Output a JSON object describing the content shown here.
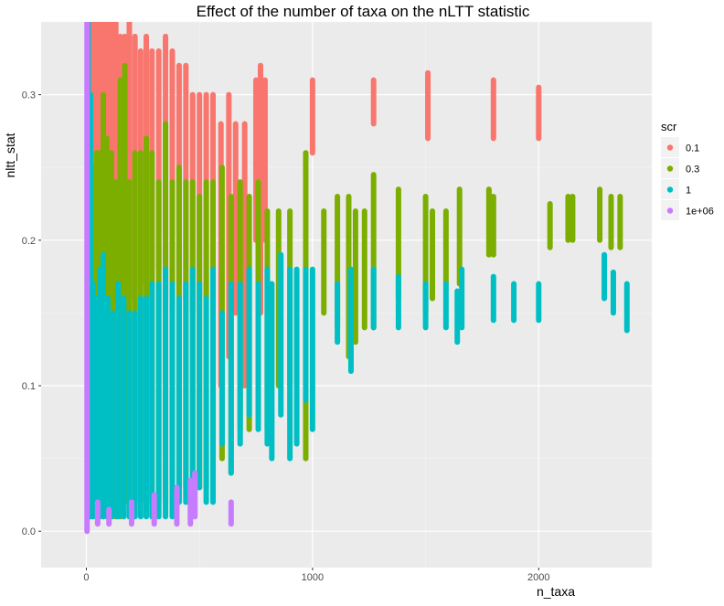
{
  "chart_data": {
    "type": "scatter",
    "title": "Effect of the number of taxa on the nLTT statistic",
    "xlabel": "n_taxa",
    "ylabel": "nltt_stat",
    "xlim": [
      -200,
      2500
    ],
    "ylim": [
      -0.025,
      0.35
    ],
    "x_ticks": [
      0,
      1000,
      2000
    ],
    "x_tick_labels": [
      "0",
      "1000",
      "2000"
    ],
    "y_ticks": [
      0.0,
      0.1,
      0.2,
      0.3
    ],
    "y_tick_labels": [
      "0.0",
      "0.1",
      "0.2",
      "0.3"
    ],
    "grid": true,
    "legend": {
      "title": "scr",
      "position": "right"
    },
    "series": [
      {
        "name": "0.1",
        "color": "#F8766D",
        "ranges": [
          {
            "x": 5,
            "ymin": 0.02,
            "ymax": 0.35
          },
          {
            "x": 12,
            "ymin": 0.03,
            "ymax": 0.35
          },
          {
            "x": 22,
            "ymin": 0.03,
            "ymax": 0.35
          },
          {
            "x": 35,
            "ymin": 0.05,
            "ymax": 0.35
          },
          {
            "x": 50,
            "ymin": 0.06,
            "ymax": 0.35
          },
          {
            "x": 65,
            "ymin": 0.08,
            "ymax": 0.35
          },
          {
            "x": 80,
            "ymin": 0.1,
            "ymax": 0.35
          },
          {
            "x": 95,
            "ymin": 0.12,
            "ymax": 0.35
          },
          {
            "x": 110,
            "ymin": 0.13,
            "ymax": 0.35
          },
          {
            "x": 130,
            "ymin": 0.14,
            "ymax": 0.35
          },
          {
            "x": 150,
            "ymin": 0.15,
            "ymax": 0.34
          },
          {
            "x": 170,
            "ymin": 0.16,
            "ymax": 0.34
          },
          {
            "x": 190,
            "ymin": 0.17,
            "ymax": 0.35
          },
          {
            "x": 215,
            "ymin": 0.16,
            "ymax": 0.34
          },
          {
            "x": 240,
            "ymin": 0.17,
            "ymax": 0.33
          },
          {
            "x": 265,
            "ymin": 0.17,
            "ymax": 0.34
          },
          {
            "x": 290,
            "ymin": 0.17,
            "ymax": 0.33
          },
          {
            "x": 320,
            "ymin": 0.18,
            "ymax": 0.33
          },
          {
            "x": 350,
            "ymin": 0.16,
            "ymax": 0.34
          },
          {
            "x": 380,
            "ymin": 0.17,
            "ymax": 0.33
          },
          {
            "x": 410,
            "ymin": 0.17,
            "ymax": 0.32
          },
          {
            "x": 440,
            "ymin": 0.16,
            "ymax": 0.32
          },
          {
            "x": 470,
            "ymin": 0.15,
            "ymax": 0.3
          },
          {
            "x": 500,
            "ymin": 0.16,
            "ymax": 0.3
          },
          {
            "x": 530,
            "ymin": 0.16,
            "ymax": 0.3
          },
          {
            "x": 560,
            "ymin": 0.1,
            "ymax": 0.3
          },
          {
            "x": 595,
            "ymin": 0.1,
            "ymax": 0.28
          },
          {
            "x": 630,
            "ymin": 0.12,
            "ymax": 0.3
          },
          {
            "x": 660,
            "ymin": 0.15,
            "ymax": 0.28
          },
          {
            "x": 700,
            "ymin": 0.1,
            "ymax": 0.28
          },
          {
            "x": 750,
            "ymin": 0.2,
            "ymax": 0.31
          },
          {
            "x": 770,
            "ymin": 0.15,
            "ymax": 0.32
          },
          {
            "x": 790,
            "ymin": 0.2,
            "ymax": 0.31
          },
          {
            "x": 1000,
            "ymin": 0.26,
            "ymax": 0.31
          },
          {
            "x": 1270,
            "ymin": 0.28,
            "ymax": 0.31
          },
          {
            "x": 1510,
            "ymin": 0.27,
            "ymax": 0.315
          },
          {
            "x": 1800,
            "ymin": 0.27,
            "ymax": 0.31
          },
          {
            "x": 2000,
            "ymin": 0.27,
            "ymax": 0.305
          }
        ]
      },
      {
        "name": "0.3",
        "color": "#7CAE00",
        "ranges": [
          {
            "x": 5,
            "ymin": 0.01,
            "ymax": 0.33
          },
          {
            "x": 15,
            "ymin": 0.01,
            "ymax": 0.3
          },
          {
            "x": 28,
            "ymin": 0.01,
            "ymax": 0.25
          },
          {
            "x": 45,
            "ymin": 0.02,
            "ymax": 0.26
          },
          {
            "x": 60,
            "ymin": 0.01,
            "ymax": 0.26
          },
          {
            "x": 75,
            "ymin": 0.01,
            "ymax": 0.3
          },
          {
            "x": 90,
            "ymin": 0.01,
            "ymax": 0.27
          },
          {
            "x": 110,
            "ymin": 0.01,
            "ymax": 0.26
          },
          {
            "x": 130,
            "ymin": 0.01,
            "ymax": 0.24
          },
          {
            "x": 150,
            "ymin": 0.01,
            "ymax": 0.31
          },
          {
            "x": 170,
            "ymin": 0.02,
            "ymax": 0.32
          },
          {
            "x": 190,
            "ymin": 0.01,
            "ymax": 0.24
          },
          {
            "x": 215,
            "ymin": 0.02,
            "ymax": 0.26
          },
          {
            "x": 240,
            "ymin": 0.02,
            "ymax": 0.26
          },
          {
            "x": 265,
            "ymin": 0.02,
            "ymax": 0.27
          },
          {
            "x": 290,
            "ymin": 0.02,
            "ymax": 0.26
          },
          {
            "x": 320,
            "ymin": 0.02,
            "ymax": 0.24
          },
          {
            "x": 350,
            "ymin": 0.02,
            "ymax": 0.28
          },
          {
            "x": 380,
            "ymin": 0.03,
            "ymax": 0.24
          },
          {
            "x": 410,
            "ymin": 0.03,
            "ymax": 0.25
          },
          {
            "x": 440,
            "ymin": 0.03,
            "ymax": 0.24
          },
          {
            "x": 470,
            "ymin": 0.03,
            "ymax": 0.24
          },
          {
            "x": 500,
            "ymin": 0.03,
            "ymax": 0.23
          },
          {
            "x": 530,
            "ymin": 0.03,
            "ymax": 0.24
          },
          {
            "x": 560,
            "ymin": 0.04,
            "ymax": 0.24
          },
          {
            "x": 600,
            "ymin": 0.05,
            "ymax": 0.25
          },
          {
            "x": 640,
            "ymin": 0.04,
            "ymax": 0.23
          },
          {
            "x": 680,
            "ymin": 0.07,
            "ymax": 0.24
          },
          {
            "x": 720,
            "ymin": 0.07,
            "ymax": 0.23
          },
          {
            "x": 760,
            "ymin": 0.08,
            "ymax": 0.24
          },
          {
            "x": 800,
            "ymin": 0.07,
            "ymax": 0.22
          },
          {
            "x": 850,
            "ymin": 0.1,
            "ymax": 0.22
          },
          {
            "x": 900,
            "ymin": 0.1,
            "ymax": 0.22
          },
          {
            "x": 970,
            "ymin": 0.05,
            "ymax": 0.26
          },
          {
            "x": 1050,
            "ymin": 0.15,
            "ymax": 0.22
          },
          {
            "x": 1110,
            "ymin": 0.14,
            "ymax": 0.23
          },
          {
            "x": 1160,
            "ymin": 0.12,
            "ymax": 0.23
          },
          {
            "x": 1190,
            "ymin": 0.13,
            "ymax": 0.22
          },
          {
            "x": 1230,
            "ymin": 0.14,
            "ymax": 0.22
          },
          {
            "x": 1270,
            "ymin": 0.14,
            "ymax": 0.245
          },
          {
            "x": 1380,
            "ymin": 0.16,
            "ymax": 0.235
          },
          {
            "x": 1500,
            "ymin": 0.15,
            "ymax": 0.23
          },
          {
            "x": 1530,
            "ymin": 0.16,
            "ymax": 0.22
          },
          {
            "x": 1590,
            "ymin": 0.17,
            "ymax": 0.22
          },
          {
            "x": 1650,
            "ymin": 0.17,
            "ymax": 0.235
          },
          {
            "x": 1780,
            "ymin": 0.19,
            "ymax": 0.235
          },
          {
            "x": 1800,
            "ymin": 0.19,
            "ymax": 0.23
          },
          {
            "x": 2050,
            "ymin": 0.195,
            "ymax": 0.225
          },
          {
            "x": 2130,
            "ymin": 0.2,
            "ymax": 0.23
          },
          {
            "x": 2150,
            "ymin": 0.2,
            "ymax": 0.23
          },
          {
            "x": 2270,
            "ymin": 0.2,
            "ymax": 0.235
          },
          {
            "x": 2320,
            "ymin": 0.195,
            "ymax": 0.23
          },
          {
            "x": 2360,
            "ymin": 0.195,
            "ymax": 0.23
          }
        ]
      },
      {
        "name": "1",
        "color": "#00BFC4",
        "ranges": [
          {
            "x": 8,
            "ymin": 0.01,
            "ymax": 0.35
          },
          {
            "x": 18,
            "ymin": 0.01,
            "ymax": 0.3
          },
          {
            "x": 30,
            "ymin": 0.01,
            "ymax": 0.17
          },
          {
            "x": 45,
            "ymin": 0.01,
            "ymax": 0.16
          },
          {
            "x": 60,
            "ymin": 0.01,
            "ymax": 0.18
          },
          {
            "x": 75,
            "ymin": 0.01,
            "ymax": 0.19
          },
          {
            "x": 95,
            "ymin": 0.01,
            "ymax": 0.16
          },
          {
            "x": 115,
            "ymin": 0.01,
            "ymax": 0.15
          },
          {
            "x": 140,
            "ymin": 0.01,
            "ymax": 0.17
          },
          {
            "x": 165,
            "ymin": 0.01,
            "ymax": 0.16
          },
          {
            "x": 190,
            "ymin": 0.01,
            "ymax": 0.15
          },
          {
            "x": 215,
            "ymin": 0.01,
            "ymax": 0.15
          },
          {
            "x": 240,
            "ymin": 0.01,
            "ymax": 0.16
          },
          {
            "x": 265,
            "ymin": 0.01,
            "ymax": 0.16
          },
          {
            "x": 290,
            "ymin": 0.01,
            "ymax": 0.17
          },
          {
            "x": 320,
            "ymin": 0.01,
            "ymax": 0.17
          },
          {
            "x": 350,
            "ymin": 0.01,
            "ymax": 0.18
          },
          {
            "x": 380,
            "ymin": 0.01,
            "ymax": 0.17
          },
          {
            "x": 410,
            "ymin": 0.02,
            "ymax": 0.16
          },
          {
            "x": 440,
            "ymin": 0.02,
            "ymax": 0.17
          },
          {
            "x": 470,
            "ymin": 0.02,
            "ymax": 0.18
          },
          {
            "x": 500,
            "ymin": 0.03,
            "ymax": 0.17
          },
          {
            "x": 530,
            "ymin": 0.02,
            "ymax": 0.16
          },
          {
            "x": 560,
            "ymin": 0.02,
            "ymax": 0.18
          },
          {
            "x": 600,
            "ymin": 0.06,
            "ymax": 0.15
          },
          {
            "x": 640,
            "ymin": 0.04,
            "ymax": 0.17
          },
          {
            "x": 680,
            "ymin": 0.06,
            "ymax": 0.17
          },
          {
            "x": 720,
            "ymin": 0.08,
            "ymax": 0.18
          },
          {
            "x": 760,
            "ymin": 0.07,
            "ymax": 0.17
          },
          {
            "x": 800,
            "ymin": 0.06,
            "ymax": 0.18
          },
          {
            "x": 820,
            "ymin": 0.05,
            "ymax": 0.17
          },
          {
            "x": 860,
            "ymin": 0.08,
            "ymax": 0.19
          },
          {
            "x": 900,
            "ymin": 0.05,
            "ymax": 0.18
          },
          {
            "x": 930,
            "ymin": 0.06,
            "ymax": 0.18
          },
          {
            "x": 970,
            "ymin": 0.09,
            "ymax": 0.18
          },
          {
            "x": 1000,
            "ymin": 0.07,
            "ymax": 0.18
          },
          {
            "x": 1110,
            "ymin": 0.13,
            "ymax": 0.17
          },
          {
            "x": 1170,
            "ymin": 0.11,
            "ymax": 0.18
          },
          {
            "x": 1270,
            "ymin": 0.14,
            "ymax": 0.18
          },
          {
            "x": 1380,
            "ymin": 0.14,
            "ymax": 0.175
          },
          {
            "x": 1500,
            "ymin": 0.14,
            "ymax": 0.17
          },
          {
            "x": 1590,
            "ymin": 0.14,
            "ymax": 0.17
          },
          {
            "x": 1640,
            "ymin": 0.13,
            "ymax": 0.165
          },
          {
            "x": 1660,
            "ymin": 0.14,
            "ymax": 0.18
          },
          {
            "x": 1800,
            "ymin": 0.145,
            "ymax": 0.175
          },
          {
            "x": 1890,
            "ymin": 0.145,
            "ymax": 0.17
          },
          {
            "x": 2000,
            "ymin": 0.145,
            "ymax": 0.17
          },
          {
            "x": 2290,
            "ymin": 0.16,
            "ymax": 0.19
          },
          {
            "x": 2330,
            "ymin": 0.15,
            "ymax": 0.178
          },
          {
            "x": 2390,
            "ymin": 0.138,
            "ymax": 0.17
          }
        ]
      },
      {
        "name": "1e+06",
        "color": "#C77CFF",
        "ranges": [
          {
            "x": 3,
            "ymin": 0.0,
            "ymax": 0.35
          },
          {
            "x": 50,
            "ymin": 0.005,
            "ymax": 0.02
          },
          {
            "x": 100,
            "ymin": 0.005,
            "ymax": 0.015
          },
          {
            "x": 200,
            "ymin": 0.005,
            "ymax": 0.02
          },
          {
            "x": 300,
            "ymin": 0.005,
            "ymax": 0.025
          },
          {
            "x": 400,
            "ymin": 0.005,
            "ymax": 0.03
          },
          {
            "x": 460,
            "ymin": 0.005,
            "ymax": 0.035
          },
          {
            "x": 480,
            "ymin": 0.01,
            "ymax": 0.04
          },
          {
            "x": 640,
            "ymin": 0.005,
            "ymax": 0.02
          }
        ]
      }
    ]
  }
}
